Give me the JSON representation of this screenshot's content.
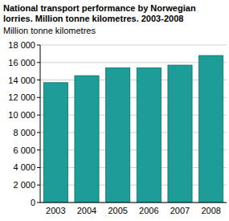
{
  "chart_data": {
    "type": "bar",
    "title": "National transport performance by Norwegian lorries. Million tonne kilometres. 2003-2008",
    "y_label": "Million tonne kilometres",
    "categories": [
      "2003",
      "2004",
      "2005",
      "2006",
      "2007",
      "2008"
    ],
    "values": [
      13700,
      14500,
      15400,
      15400,
      15700,
      16800
    ],
    "color": "#1e9c97",
    "ylim": [
      0,
      18000
    ],
    "yticks": [
      0,
      {
        "value": 2000,
        "label": "2 000"
      },
      {
        "value": 4000,
        "label": "4 000"
      },
      {
        "value": 6000,
        "label": "6 000"
      },
      {
        "value": 8000,
        "label": "8 000"
      },
      {
        "value": 10000,
        "label": "10 000"
      },
      {
        "value": 12000,
        "label": "12 000"
      },
      {
        "value": 14000,
        "label": "14 000"
      },
      {
        "value": 16000,
        "label": "16 000"
      },
      {
        "value": 18000,
        "label": "18 000"
      }
    ],
    "grid": true
  }
}
